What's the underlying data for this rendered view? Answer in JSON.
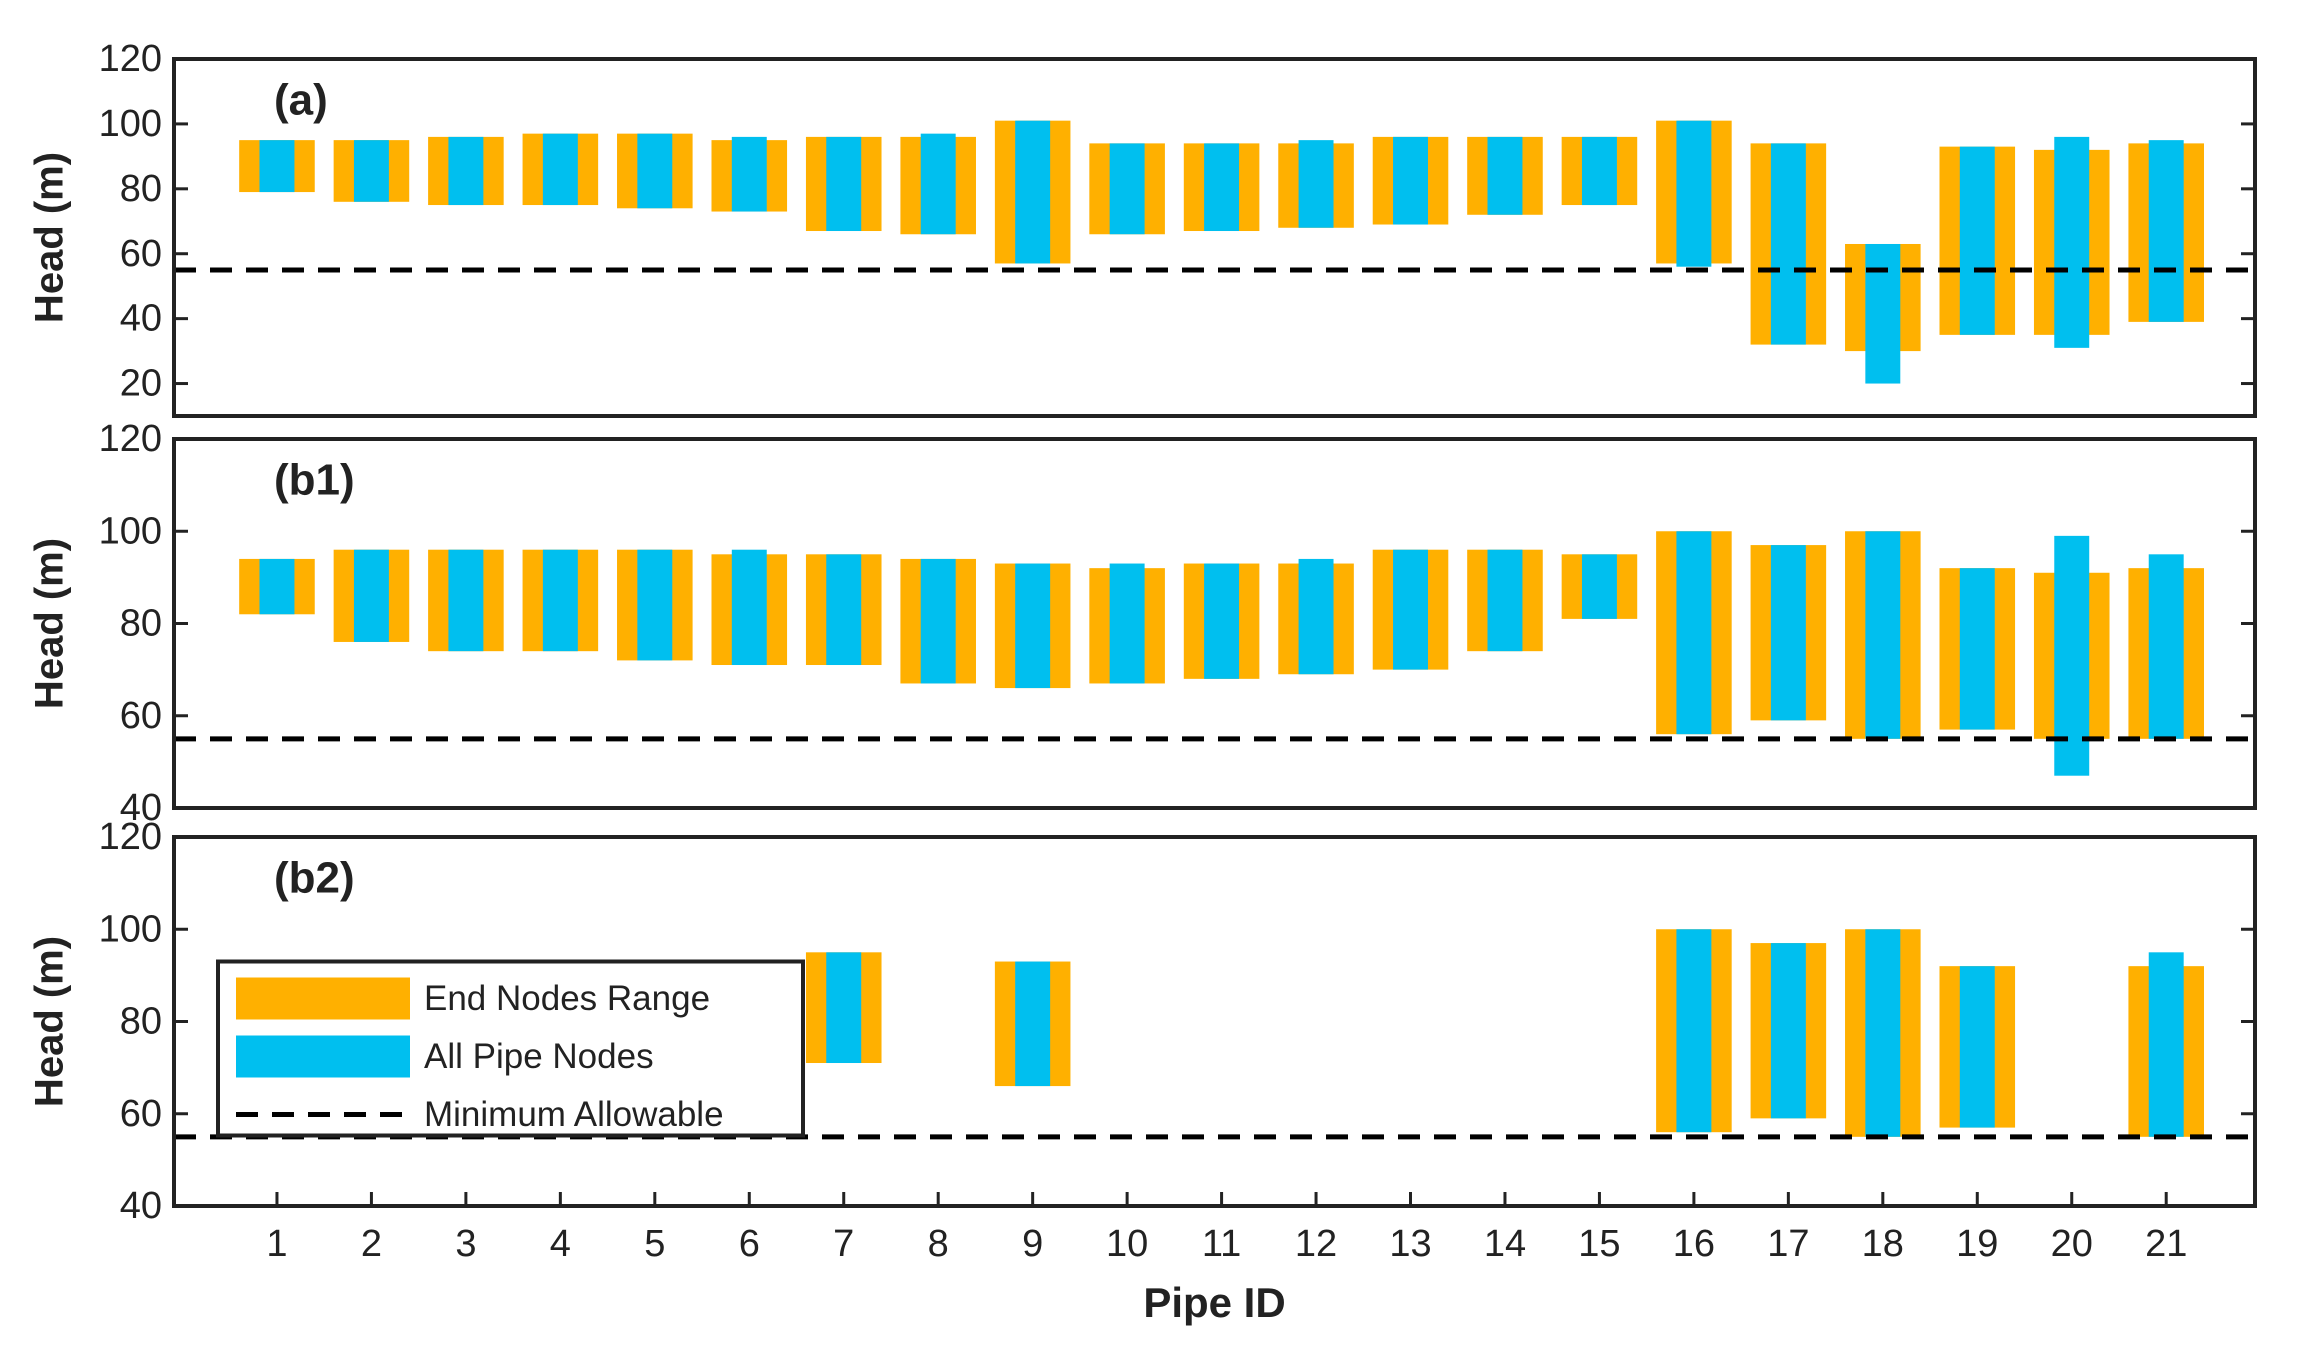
{
  "chart_data": [
    {
      "type": "range-bar",
      "label": "(a)",
      "ylabel": "Head (m)",
      "ylim": [
        10,
        120
      ],
      "yticks": [
        20,
        40,
        60,
        80,
        100,
        120
      ],
      "series": [
        {
          "color": "#FFB000",
          "values": [
            [
              79,
              95
            ],
            [
              76,
              95
            ],
            [
              75,
              96
            ],
            [
              75,
              97
            ],
            [
              74,
              97
            ],
            [
              73,
              95
            ],
            [
              67,
              96
            ],
            [
              66,
              96
            ],
            [
              57,
              101
            ],
            [
              66,
              94
            ],
            [
              67,
              94
            ],
            [
              68,
              94
            ],
            [
              69,
              96
            ],
            [
              72,
              96
            ],
            [
              75,
              96
            ],
            [
              57,
              101
            ],
            [
              32,
              94
            ],
            [
              30,
              63
            ],
            [
              35,
              93
            ],
            [
              35,
              92
            ],
            [
              39,
              94
            ]
          ]
        },
        {
          "color": "#00BFEF",
          "values": [
            [
              79,
              95
            ],
            [
              76,
              95
            ],
            [
              75,
              96
            ],
            [
              75,
              97
            ],
            [
              74,
              97
            ],
            [
              73,
              96
            ],
            [
              67,
              96
            ],
            [
              66,
              97
            ],
            [
              57,
              101
            ],
            [
              66,
              94
            ],
            [
              67,
              94
            ],
            [
              68,
              95
            ],
            [
              69,
              96
            ],
            [
              72,
              96
            ],
            [
              75,
              96
            ],
            [
              56,
              101
            ],
            [
              32,
              94
            ],
            [
              20,
              63
            ],
            [
              35,
              93
            ],
            [
              31,
              96
            ],
            [
              39,
              95
            ]
          ]
        }
      ],
      "reference_line": {
        "value": 55,
        "color": "#000000"
      }
    },
    {
      "type": "range-bar",
      "label": "(b1)",
      "ylabel": "Head (m)",
      "ylim": [
        40,
        120
      ],
      "yticks": [
        40,
        60,
        80,
        100,
        120
      ],
      "series": [
        {
          "color": "#FFB000",
          "values": [
            [
              82,
              94
            ],
            [
              76,
              96
            ],
            [
              74,
              96
            ],
            [
              74,
              96
            ],
            [
              72,
              96
            ],
            [
              71,
              95
            ],
            [
              71,
              95
            ],
            [
              67,
              94
            ],
            [
              66,
              93
            ],
            [
              67,
              92
            ],
            [
              68,
              93
            ],
            [
              69,
              93
            ],
            [
              70,
              96
            ],
            [
              74,
              96
            ],
            [
              81,
              95
            ],
            [
              56,
              100
            ],
            [
              59,
              97
            ],
            [
              55,
              100
            ],
            [
              57,
              92
            ],
            [
              55,
              91
            ],
            [
              55,
              92
            ]
          ]
        },
        {
          "color": "#00BFEF",
          "values": [
            [
              82,
              94
            ],
            [
              76,
              96
            ],
            [
              74,
              96
            ],
            [
              74,
              96
            ],
            [
              72,
              96
            ],
            [
              71,
              96
            ],
            [
              71,
              95
            ],
            [
              67,
              94
            ],
            [
              66,
              93
            ],
            [
              67,
              93
            ],
            [
              68,
              93
            ],
            [
              69,
              94
            ],
            [
              70,
              96
            ],
            [
              74,
              96
            ],
            [
              81,
              95
            ],
            [
              56,
              100
            ],
            [
              59,
              97
            ],
            [
              55,
              100
            ],
            [
              57,
              92
            ],
            [
              47,
              99
            ],
            [
              55,
              95
            ]
          ]
        }
      ],
      "reference_line": {
        "value": 55,
        "color": "#000000"
      }
    },
    {
      "type": "range-bar",
      "label": "(b2)",
      "ylabel": "Head (m)",
      "xlabel": "Pipe ID",
      "ylim": [
        40,
        120
      ],
      "yticks": [
        40,
        60,
        80,
        100,
        120
      ],
      "categories": [
        "1",
        "2",
        "3",
        "4",
        "5",
        "6",
        "7",
        "8",
        "9",
        "10",
        "11",
        "12",
        "13",
        "14",
        "15",
        "16",
        "17",
        "18",
        "19",
        "20",
        "21"
      ],
      "legend": "center left",
      "series": [
        {
          "name": "End Nodes Range",
          "color": "#FFB000",
          "values": [
            null,
            null,
            null,
            null,
            null,
            null,
            [
              71,
              95
            ],
            null,
            [
              66,
              93
            ],
            null,
            null,
            null,
            null,
            null,
            null,
            [
              56,
              100
            ],
            [
              59,
              97
            ],
            [
              55,
              100
            ],
            [
              57,
              92
            ],
            null,
            [
              55,
              92
            ]
          ]
        },
        {
          "name": "All Pipe Nodes",
          "color": "#00BFEF",
          "values": [
            null,
            null,
            null,
            null,
            null,
            null,
            [
              71,
              95
            ],
            null,
            [
              66,
              93
            ],
            null,
            null,
            null,
            null,
            null,
            null,
            [
              56,
              100
            ],
            [
              59,
              97
            ],
            [
              55,
              100
            ],
            [
              57,
              92
            ],
            null,
            [
              55,
              95
            ]
          ]
        }
      ],
      "reference_line": {
        "name": "Minimum Allowable",
        "value": 55,
        "color": "#000000"
      }
    }
  ]
}
